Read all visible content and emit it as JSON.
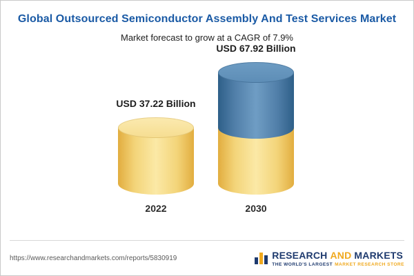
{
  "title": "Global Outsourced Semiconductor Assembly And Test Services Market",
  "subtitle": "Market forecast to grow at a CAGR of 7.9%",
  "chart_data": {
    "type": "bar",
    "categories": [
      "2022",
      "2030"
    ],
    "values": [
      37.22,
      67.92
    ],
    "value_labels": [
      "USD 37.22 Billion",
      "USD 67.92 Billion"
    ],
    "unit": "USD Billion",
    "cagr_percent": 7.9,
    "title": "Global Outsourced Semiconductor Assembly And Test Services Market",
    "subtitle": "Market forecast to grow at a CAGR of 7.9%",
    "colors": {
      "base_segment": "#f3d479",
      "growth_segment": "#517fa9"
    },
    "legend_position": "none",
    "grid": false
  },
  "footer": {
    "url": "https://www.researchandmarkets.com/reports/5830919",
    "brand": {
      "word1": "RESEARCH",
      "word2": "AND",
      "word3": "MARKETS",
      "tagline1": "THE WORLD'S LARGEST",
      "tagline2": "MARKET RESEARCH STORE"
    }
  }
}
